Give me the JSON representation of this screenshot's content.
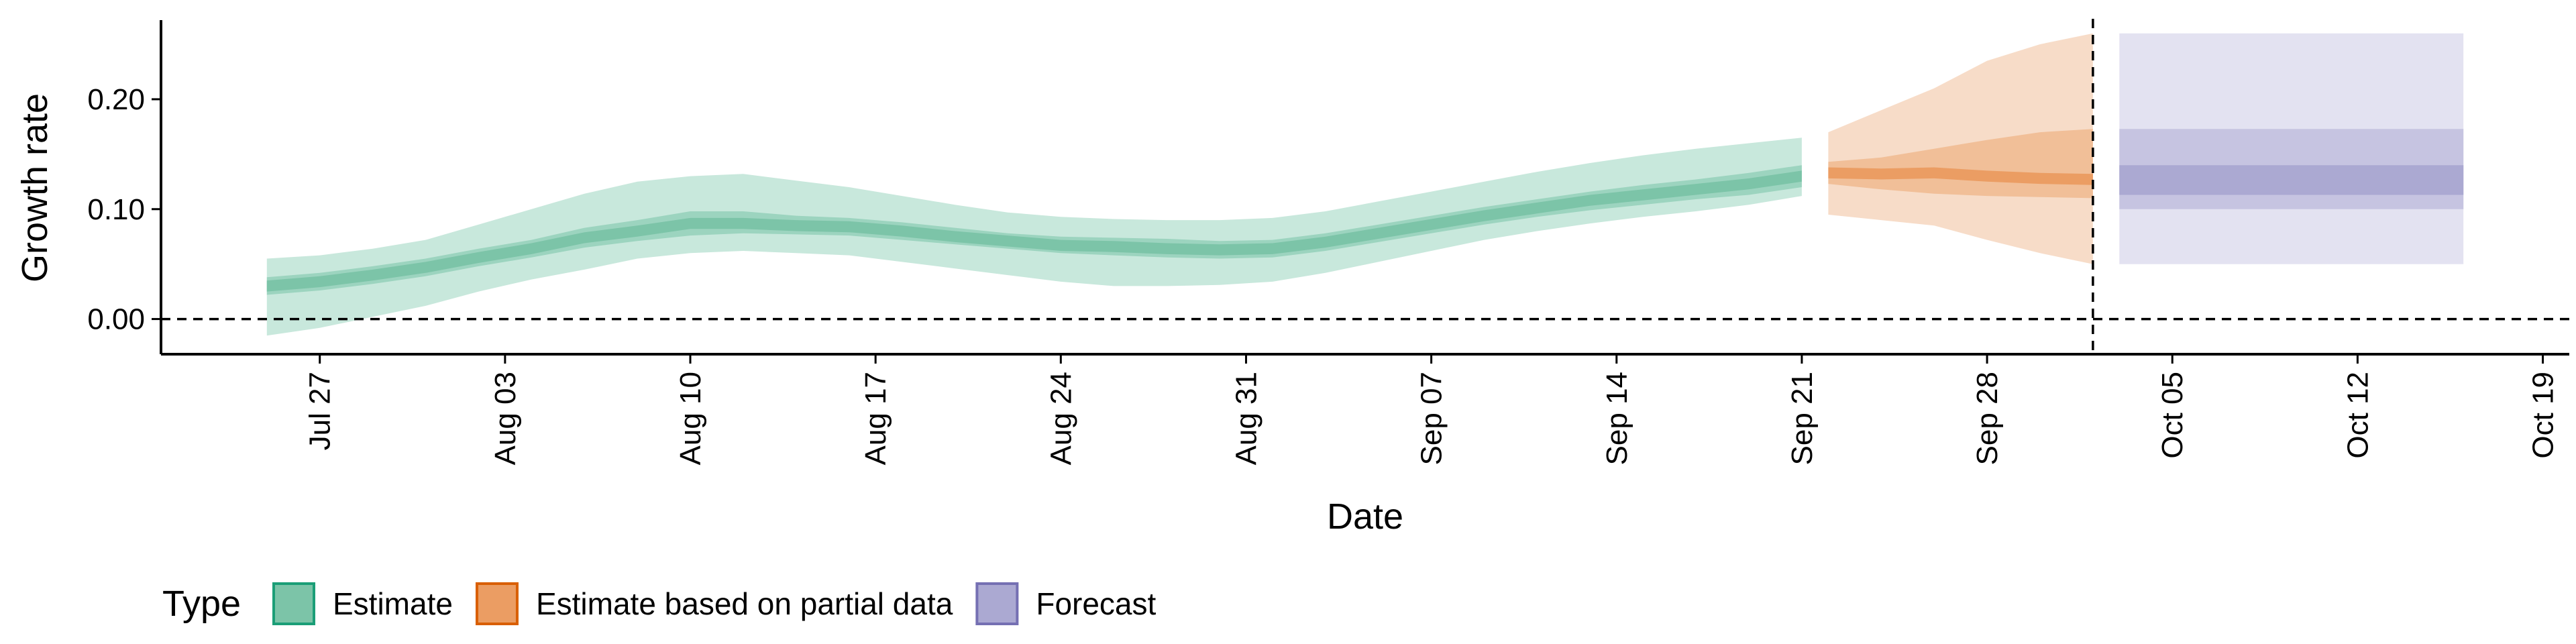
{
  "chart_data": {
    "type": "area",
    "title": "",
    "xlabel": "Date",
    "ylabel": "Growth rate",
    "x_range": [
      "2020-07-21",
      "2020-10-20"
    ],
    "y_range": [
      -0.032,
      0.272
    ],
    "x_ticks": [
      {
        "date": "2020-07-27",
        "label": "Jul 27"
      },
      {
        "date": "2020-08-03",
        "label": "Aug 03"
      },
      {
        "date": "2020-08-10",
        "label": "Aug 10"
      },
      {
        "date": "2020-08-17",
        "label": "Aug 17"
      },
      {
        "date": "2020-08-24",
        "label": "Aug 24"
      },
      {
        "date": "2020-08-31",
        "label": "Aug 31"
      },
      {
        "date": "2020-09-07",
        "label": "Sep 07"
      },
      {
        "date": "2020-09-14",
        "label": "Sep 14"
      },
      {
        "date": "2020-09-21",
        "label": "Sep 21"
      },
      {
        "date": "2020-09-28",
        "label": "Sep 28"
      },
      {
        "date": "2020-10-05",
        "label": "Oct 05"
      },
      {
        "date": "2020-10-12",
        "label": "Oct 12"
      },
      {
        "date": "2020-10-19",
        "label": "Oct 19"
      }
    ],
    "y_ticks": [
      {
        "value": 0.0,
        "label": "0.00"
      },
      {
        "value": 0.1,
        "label": "0.10"
      },
      {
        "value": 0.2,
        "label": "0.20"
      }
    ],
    "reference_lines": {
      "horizontal_y": 0.0,
      "vertical_date": "2020-10-02"
    },
    "grid": false,
    "legend": {
      "position": "bottom-left",
      "title": "Type",
      "entries": [
        {
          "label": "Estimate",
          "fill": "#7cc4a8",
          "stroke": "#1b9e77"
        },
        {
          "label": "Estimate based on partial data",
          "fill": "#eb9d63",
          "stroke": "#d95f02"
        },
        {
          "label": "Forecast",
          "fill": "#aba9d2",
          "stroke": "#7570b3"
        }
      ]
    },
    "series": [
      {
        "type_index": 0,
        "color_outer": "#c8e8dc",
        "color_mid": "#9cd4bf",
        "color_inner": "#7cc4a8",
        "dates": [
          "2020-07-25",
          "2020-07-27",
          "2020-07-29",
          "2020-07-31",
          "2020-08-02",
          "2020-08-04",
          "2020-08-06",
          "2020-08-08",
          "2020-08-10",
          "2020-08-12",
          "2020-08-14",
          "2020-08-16",
          "2020-08-18",
          "2020-08-20",
          "2020-08-22",
          "2020-08-24",
          "2020-08-26",
          "2020-08-28",
          "2020-08-30",
          "2020-09-01",
          "2020-09-03",
          "2020-09-05",
          "2020-09-07",
          "2020-09-09",
          "2020-09-11",
          "2020-09-13",
          "2020-09-15",
          "2020-09-17",
          "2020-09-19",
          "2020-09-21"
        ],
        "median": [
          0.03,
          0.034,
          0.04,
          0.047,
          0.056,
          0.064,
          0.074,
          0.08,
          0.087,
          0.087,
          0.085,
          0.084,
          0.08,
          0.075,
          0.071,
          0.067,
          0.066,
          0.064,
          0.063,
          0.064,
          0.07,
          0.078,
          0.086,
          0.094,
          0.101,
          0.108,
          0.113,
          0.118,
          0.123,
          0.13
        ],
        "lower50": [
          0.022,
          0.026,
          0.032,
          0.039,
          0.048,
          0.056,
          0.065,
          0.071,
          0.076,
          0.078,
          0.077,
          0.076,
          0.072,
          0.068,
          0.064,
          0.06,
          0.058,
          0.056,
          0.055,
          0.056,
          0.062,
          0.07,
          0.078,
          0.086,
          0.093,
          0.099,
          0.104,
          0.109,
          0.113,
          0.12
        ],
        "upper50": [
          0.038,
          0.042,
          0.048,
          0.055,
          0.064,
          0.072,
          0.083,
          0.09,
          0.098,
          0.098,
          0.094,
          0.092,
          0.088,
          0.083,
          0.078,
          0.075,
          0.074,
          0.073,
          0.071,
          0.072,
          0.078,
          0.086,
          0.094,
          0.102,
          0.109,
          0.116,
          0.122,
          0.127,
          0.133,
          0.14
        ],
        "lower90": [
          -0.015,
          -0.008,
          0.002,
          0.012,
          0.025,
          0.036,
          0.045,
          0.055,
          0.06,
          0.062,
          0.06,
          0.058,
          0.052,
          0.046,
          0.04,
          0.034,
          0.03,
          0.03,
          0.031,
          0.034,
          0.042,
          0.052,
          0.062,
          0.072,
          0.08,
          0.087,
          0.093,
          0.098,
          0.104,
          0.112
        ],
        "upper90": [
          0.055,
          0.058,
          0.064,
          0.072,
          0.086,
          0.1,
          0.114,
          0.125,
          0.13,
          0.132,
          0.126,
          0.12,
          0.112,
          0.104,
          0.097,
          0.093,
          0.091,
          0.09,
          0.09,
          0.092,
          0.098,
          0.107,
          0.116,
          0.125,
          0.134,
          0.142,
          0.149,
          0.155,
          0.16,
          0.165
        ]
      },
      {
        "type_index": 1,
        "color_outer": "#f7dcc8",
        "color_mid": "#f1bf98",
        "color_inner": "#eb9d63",
        "dates": [
          "2020-09-22",
          "2020-09-24",
          "2020-09-26",
          "2020-09-28",
          "2020-09-30",
          "2020-10-02"
        ],
        "median": [
          0.133,
          0.132,
          0.133,
          0.13,
          0.128,
          0.127
        ],
        "lower50": [
          0.123,
          0.118,
          0.114,
          0.112,
          0.111,
          0.11
        ],
        "upper50": [
          0.143,
          0.147,
          0.155,
          0.163,
          0.17,
          0.173
        ],
        "lower90": [
          0.095,
          0.09,
          0.085,
          0.072,
          0.06,
          0.05
        ],
        "upper90": [
          0.17,
          0.19,
          0.21,
          0.235,
          0.25,
          0.26
        ]
      },
      {
        "type_index": 2,
        "color_outer": "#e3e2f1",
        "color_mid": "#c6c4e1",
        "color_inner": "#aba9d2",
        "dates": [
          "2020-10-03",
          "2020-10-16"
        ],
        "lower50_inner": [
          0.113,
          0.113
        ],
        "upper50_inner": [
          0.14,
          0.14
        ],
        "lower50": [
          0.1,
          0.1
        ],
        "upper50": [
          0.173,
          0.173
        ],
        "lower90": [
          0.05,
          0.05
        ],
        "upper90": [
          0.26,
          0.26
        ]
      }
    ]
  }
}
